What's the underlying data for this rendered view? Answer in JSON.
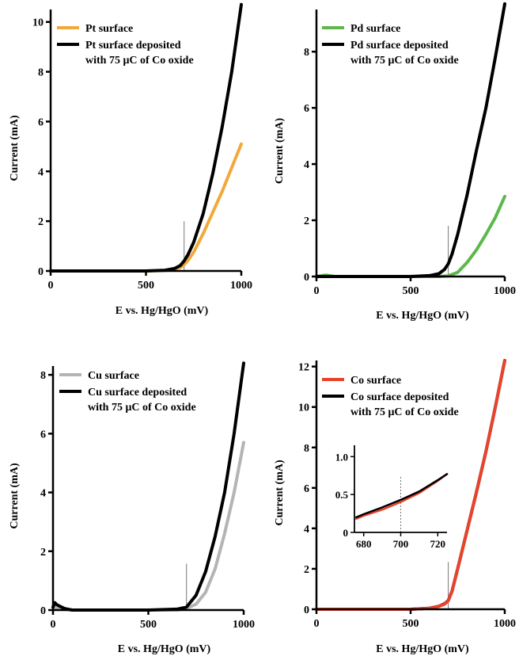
{
  "chart_data": [
    {
      "type": "line",
      "xlabel": "E vs. Hg/HgO (mV)",
      "ylabel": "Current (mA)",
      "xlim": [
        0,
        1000
      ],
      "ylim": [
        0,
        10.5
      ],
      "xticks": [
        0,
        500,
        1000
      ],
      "yticks": [
        0,
        2,
        4,
        6,
        8,
        10
      ],
      "vline": 700,
      "legend": "top-left",
      "series": [
        {
          "name": "Pt surface",
          "color": "#f2a93b",
          "x": [
            0,
            500,
            600,
            650,
            680,
            700,
            720,
            750,
            800,
            850,
            900,
            950,
            1000
          ],
          "y": [
            0,
            0,
            0.02,
            0.06,
            0.14,
            0.25,
            0.42,
            0.75,
            1.5,
            2.35,
            3.2,
            4.15,
            5.1
          ]
        },
        {
          "name": "Pt surface deposited with 75 μC of Co oxide",
          "color": "#000000",
          "x": [
            0,
            500,
            600,
            650,
            680,
            700,
            720,
            750,
            800,
            850,
            900,
            950,
            1000
          ],
          "y": [
            0,
            0,
            0.03,
            0.1,
            0.22,
            0.4,
            0.65,
            1.15,
            2.3,
            3.9,
            5.8,
            8.0,
            10.7
          ]
        }
      ]
    },
    {
      "type": "line",
      "xlabel": "E vs. Hg/HgO (mV)",
      "ylabel": "Current (mA)",
      "xlim": [
        0,
        1000
      ],
      "ylim": [
        0,
        9.5
      ],
      "xticks": [
        0,
        500,
        1000
      ],
      "yticks": [
        0,
        2,
        4,
        6,
        8
      ],
      "vline": 700,
      "legend": "top-left",
      "series": [
        {
          "name": "Pd surface",
          "color": "#5cb84a",
          "x": [
            0,
            50,
            100,
            500,
            650,
            700,
            750,
            800,
            850,
            900,
            950,
            1000
          ],
          "y": [
            0,
            0.05,
            0,
            0,
            0,
            0.02,
            0.15,
            0.5,
            0.95,
            1.5,
            2.1,
            2.85
          ]
        },
        {
          "name": "Pd surface deposited with 75 μC of Co oxide",
          "color": "#000000",
          "x": [
            0,
            500,
            600,
            650,
            680,
            700,
            720,
            750,
            800,
            850,
            900,
            950,
            1000
          ],
          "y": [
            0,
            0,
            0.03,
            0.1,
            0.25,
            0.45,
            0.8,
            1.5,
            2.9,
            4.5,
            6.0,
            7.8,
            9.7
          ]
        }
      ]
    },
    {
      "type": "line",
      "xlabel": "E vs. Hg/HgO (mV)",
      "ylabel": "Current (mA)",
      "xlim": [
        0,
        1000
      ],
      "ylim": [
        0,
        8.3
      ],
      "xticks": [
        0,
        500,
        1000
      ],
      "yticks": [
        0,
        2,
        4,
        6,
        8
      ],
      "vline": 700,
      "legend": "top-left",
      "series": [
        {
          "name": "Cu surface",
          "color": "#b4b4b4",
          "x": [
            0,
            20,
            100,
            500,
            650,
            700,
            750,
            800,
            850,
            900,
            950,
            1000
          ],
          "y": [
            0.1,
            0.05,
            0,
            0,
            0,
            0.05,
            0.2,
            0.6,
            1.4,
            2.6,
            4.0,
            5.7
          ]
        },
        {
          "name": "Cu surface deposited with 75 μC of Co oxide",
          "color": "#000000",
          "x": [
            0,
            10,
            20,
            60,
            100,
            500,
            650,
            700,
            750,
            800,
            850,
            900,
            950,
            1000
          ],
          "y": [
            0.1,
            0.25,
            0.18,
            0.05,
            0,
            0,
            0.03,
            0.1,
            0.5,
            1.3,
            2.5,
            4.0,
            6.0,
            8.4
          ]
        }
      ]
    },
    {
      "type": "line",
      "xlabel": "E vs. Hg/HgO (mV)",
      "ylabel": "Current (mA)",
      "xlim": [
        0,
        1000
      ],
      "ylim": [
        0,
        12.3
      ],
      "xticks": [
        0,
        500,
        1000
      ],
      "yticks": [
        0,
        2,
        4,
        6,
        8,
        10,
        12
      ],
      "vline": 700,
      "legend": "top-left",
      "series": [
        {
          "name": "Co surface",
          "color": "#e8432c",
          "x": [
            0,
            500,
            600,
            650,
            680,
            700,
            720,
            750,
            800,
            850,
            900,
            950,
            1000
          ],
          "y": [
            0,
            0,
            0.05,
            0.15,
            0.25,
            0.42,
            0.9,
            2.0,
            3.9,
            5.8,
            7.8,
            10.0,
            12.3
          ]
        },
        {
          "name": "Co surface deposited with 75 μC of Co oxide",
          "color": "#000000",
          "x": [
            0,
            500,
            600,
            650,
            680,
            700,
            720,
            750,
            800,
            850,
            900,
            950,
            1000
          ],
          "y": [
            0,
            0,
            0.05,
            0.15,
            0.27,
            0.43,
            0.9,
            2.0,
            3.9,
            5.8,
            7.8,
            10.0,
            12.3
          ]
        }
      ],
      "inset": {
        "xlim": [
          675,
          725
        ],
        "ylim": [
          0,
          1.15
        ],
        "xticks": [
          680,
          700,
          720
        ],
        "yticks": [
          0,
          0.5,
          1.0
        ],
        "ytick_labels": [
          "0",
          "0.5",
          "1.0"
        ],
        "vline": 700,
        "series": [
          {
            "name": "Co surface",
            "color": "#e8432c",
            "x": [
              676,
              680,
              690,
              700,
              710,
              720,
              725
            ],
            "y": [
              0.18,
              0.22,
              0.3,
              0.4,
              0.52,
              0.68,
              0.77
            ]
          },
          {
            "name": "Co surface deposited with 75 μC of Co oxide",
            "color": "#000000",
            "x": [
              676,
              680,
              690,
              700,
              710,
              720,
              725
            ],
            "y": [
              0.2,
              0.24,
              0.33,
              0.43,
              0.54,
              0.69,
              0.77
            ]
          }
        ]
      }
    }
  ]
}
